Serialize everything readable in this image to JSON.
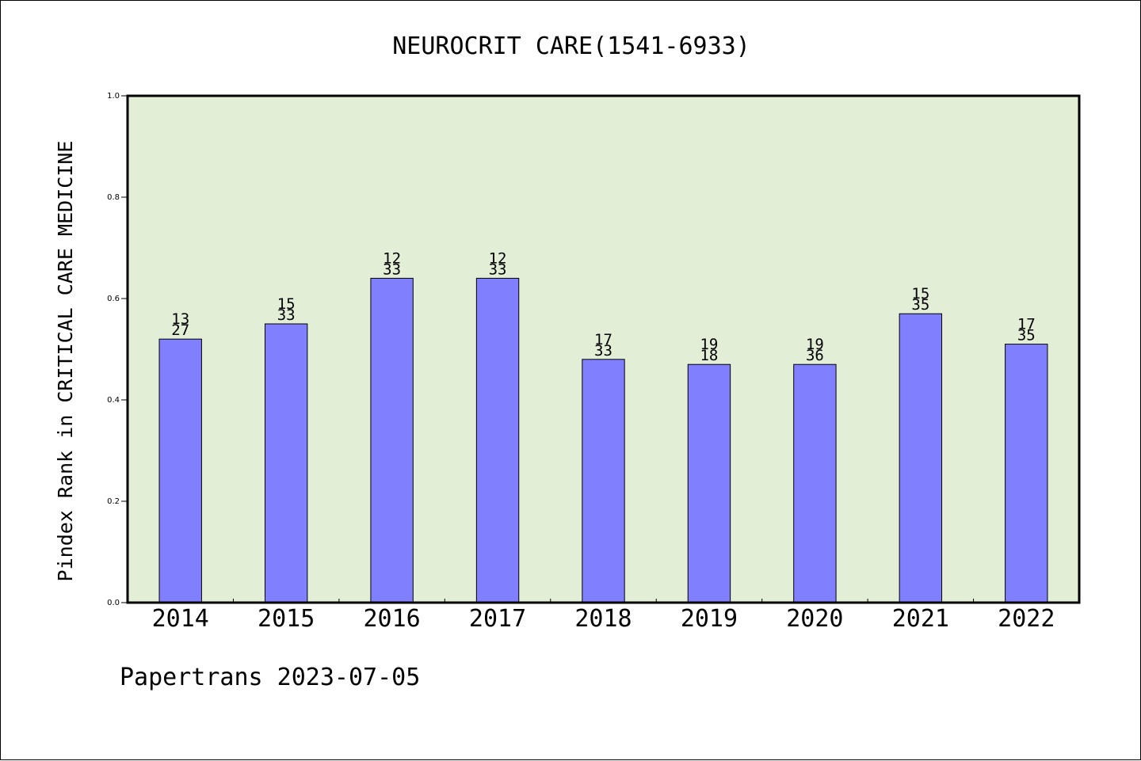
{
  "chart_data": {
    "type": "bar",
    "title": "NEUROCRIT CARE(1541-6933)",
    "ylabel": "Pindex Rank in CRITICAL CARE MEDICINE",
    "xlabel": "",
    "categories": [
      "2014",
      "2015",
      "2016",
      "2017",
      "2018",
      "2019",
      "2020",
      "2021",
      "2022"
    ],
    "values": [
      0.52,
      0.55,
      0.64,
      0.64,
      0.48,
      0.47,
      0.47,
      0.57,
      0.51
    ],
    "bar_labels_top": [
      "13",
      "15",
      "12",
      "12",
      "17",
      "19",
      "19",
      "15",
      "17"
    ],
    "bar_labels_bottom": [
      "27",
      "33",
      "33",
      "33",
      "33",
      "18",
      "36",
      "35",
      "35"
    ],
    "ylim": [
      0,
      1.0
    ],
    "yticks": [
      "0.0",
      "0.2",
      "0.4",
      "0.6",
      "0.8",
      "1.0"
    ],
    "grid": false,
    "colors": {
      "bar": "#8080ff",
      "plot_bg": "#e2efd6",
      "axes": "#000000"
    }
  },
  "footer": "Papertrans 2023-07-05"
}
